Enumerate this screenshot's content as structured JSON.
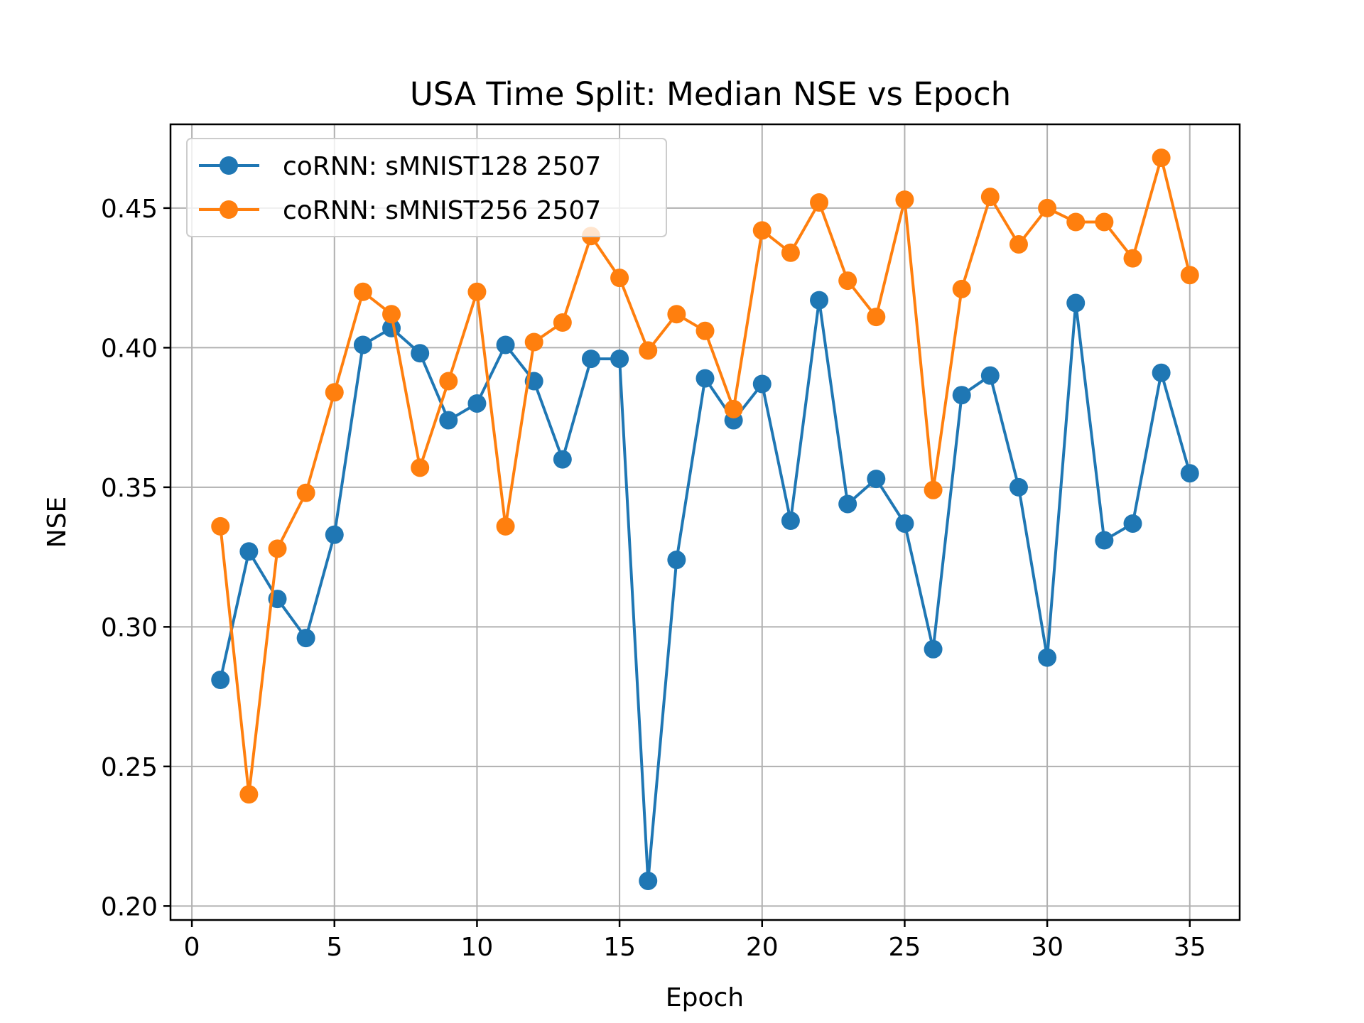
{
  "chart_data": {
    "type": "line",
    "title": "USA Time Split: Median NSE vs Epoch",
    "xlabel": "Epoch",
    "ylabel": "NSE",
    "xlim": [
      -0.75,
      36.75
    ],
    "ylim": [
      0.195,
      0.48
    ],
    "xticks": [
      0,
      5,
      10,
      15,
      20,
      25,
      30,
      35
    ],
    "yticks": [
      0.2,
      0.25,
      0.3,
      0.35,
      0.4,
      0.45
    ],
    "ytick_labels": [
      "0.20",
      "0.25",
      "0.30",
      "0.35",
      "0.40",
      "0.45"
    ],
    "grid": true,
    "legend_position": "upper-left",
    "x": [
      1,
      2,
      3,
      4,
      5,
      6,
      7,
      8,
      9,
      10,
      11,
      12,
      13,
      14,
      15,
      16,
      17,
      18,
      19,
      20,
      21,
      22,
      23,
      24,
      25,
      26,
      27,
      28,
      29,
      30,
      31,
      32,
      33,
      34,
      35
    ],
    "series": [
      {
        "name": "coRNN: sMNIST128 2507",
        "color": "#1f77b4",
        "values": [
          0.281,
          0.327,
          0.31,
          0.296,
          0.333,
          0.401,
          0.407,
          0.398,
          0.374,
          0.38,
          0.401,
          0.388,
          0.36,
          0.396,
          0.396,
          0.209,
          0.324,
          0.389,
          0.374,
          0.387,
          0.338,
          0.417,
          0.344,
          0.353,
          0.337,
          0.292,
          0.383,
          0.39,
          0.35,
          0.289,
          0.416,
          0.331,
          0.337,
          0.391,
          0.355
        ]
      },
      {
        "name": "coRNN: sMNIST256 2507",
        "color": "#ff7f0e",
        "values": [
          0.336,
          0.24,
          0.328,
          0.348,
          0.384,
          0.42,
          0.412,
          0.357,
          0.388,
          0.42,
          0.336,
          0.402,
          0.409,
          0.44,
          0.425,
          0.399,
          0.412,
          0.406,
          0.378,
          0.442,
          0.434,
          0.452,
          0.424,
          0.411,
          0.453,
          0.349,
          0.421,
          0.454,
          0.437,
          0.45,
          0.445,
          0.445,
          0.432,
          0.468,
          0.426
        ]
      }
    ]
  }
}
